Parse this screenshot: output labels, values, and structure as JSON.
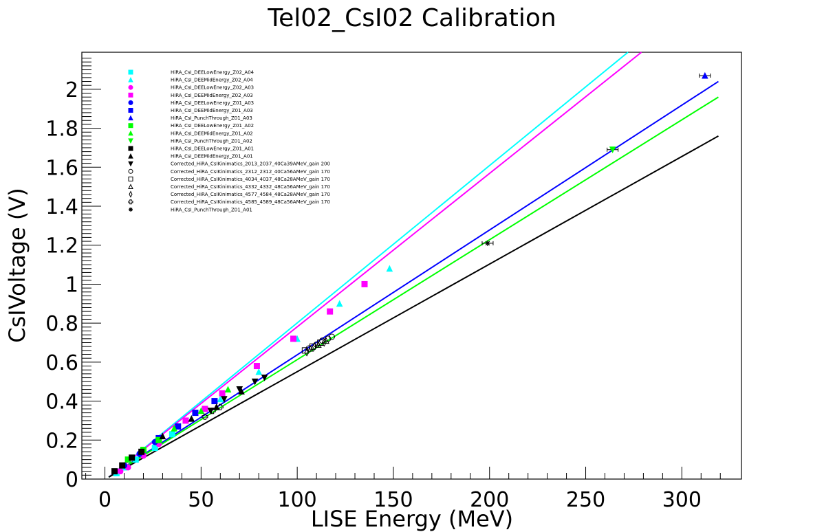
{
  "chart_data": {
    "type": "scatter",
    "title": "Tel02_CsI02 Calibration",
    "xlabel": "LISE Energy (MeV)",
    "ylabel": "CsIVoltage (V)",
    "xlim": [
      -12,
      331
    ],
    "ylim": [
      0,
      2.19
    ],
    "xticks": [
      0,
      50,
      100,
      150,
      200,
      250,
      300
    ],
    "yticks": [
      0,
      0.2,
      0.4,
      0.6,
      0.8,
      1,
      1.2,
      1.4,
      1.6,
      1.8,
      2
    ],
    "xtick_labels": [
      "0",
      "50",
      "100",
      "150",
      "200",
      "250",
      "300"
    ],
    "ytick_labels": [
      "0",
      "0.2",
      "0.4",
      "0.6",
      "0.8",
      "1",
      "1.2",
      "1.4",
      "1.6",
      "1.8",
      "2"
    ],
    "grid": false,
    "legend_position": "top-left",
    "series": [
      {
        "name": "HiRA_CsI_DEELowEnergy_Z02_A04",
        "color": "#00ffff",
        "marker": "square",
        "x": [
          6,
          10,
          16,
          26,
          35
        ],
        "y": [
          0.03,
          0.06,
          0.1,
          0.16,
          0.23
        ]
      },
      {
        "name": "HiRA_CsI_DEEMidEnergy_Z02_A04",
        "color": "#00ffff",
        "marker": "triangle-up",
        "x": [
          45,
          60,
          80,
          100,
          122,
          148
        ],
        "y": [
          0.31,
          0.41,
          0.55,
          0.72,
          0.9,
          1.08
        ]
      },
      {
        "name": "HiRA_CsI_DEELowEnergy_Z02_A03",
        "color": "#ff00ff",
        "marker": "circle",
        "x": [
          8,
          12,
          20,
          28
        ],
        "y": [
          0.04,
          0.06,
          0.12,
          0.18
        ]
      },
      {
        "name": "HiRA_CsI_DEEMidEnergy_Z02_A03",
        "color": "#ff00ff",
        "marker": "square",
        "x": [
          42,
          52,
          61,
          79,
          98,
          117,
          135
        ],
        "y": [
          0.3,
          0.36,
          0.44,
          0.58,
          0.72,
          0.86,
          1.0
        ]
      },
      {
        "name": "HiRA_CsI_DEELowEnergy_Z01_A03",
        "color": "#0000ff",
        "marker": "circle",
        "x": [
          10,
          18,
          26
        ],
        "y": [
          0.07,
          0.13,
          0.19
        ]
      },
      {
        "name": "HiRA_CsI_DEEMidEnergy_Z01_A03",
        "color": "#0000ff",
        "marker": "square",
        "x": [
          28,
          38,
          47,
          57
        ],
        "y": [
          0.21,
          0.27,
          0.34,
          0.4
        ]
      },
      {
        "name": "HiRA_CsI_PunchThrough_Z01_A03",
        "color": "#0000ff",
        "marker": "triangle-up",
        "x": [
          312
        ],
        "y": [
          2.07
        ]
      },
      {
        "name": "HiRA_CsI_DEELowEnergy_Z01_A02",
        "color": "#00ff00",
        "marker": "square",
        "x": [
          12,
          20,
          28
        ],
        "y": [
          0.1,
          0.15,
          0.2
        ]
      },
      {
        "name": "HiRA_CsI_DEEMidEnergy_Z01_A02",
        "color": "#00ff00",
        "marker": "triangle-up",
        "x": [
          36,
          50,
          64
        ],
        "y": [
          0.26,
          0.35,
          0.46
        ]
      },
      {
        "name": "HiRA_CsI_PunchThrough_Z01_A02",
        "color": "#00ff00",
        "marker": "triangle-down",
        "x": [
          264
        ],
        "y": [
          1.69
        ]
      },
      {
        "name": "HiRA_CsI_DEELowEnergy_Z01_A01",
        "color": "#000000",
        "marker": "square",
        "x": [
          5,
          9,
          14,
          19
        ],
        "y": [
          0.04,
          0.07,
          0.11,
          0.14
        ]
      },
      {
        "name": "HiRA_CsI_DEEMidEnergy_Z01_A01",
        "color": "#000000",
        "marker": "triangle-up",
        "x": [
          30,
          45,
          58,
          71
        ],
        "y": [
          0.22,
          0.31,
          0.37,
          0.45
        ]
      },
      {
        "name": "Corrected_HiRA_CsIKinimatics_2013_2037_40Ca39AMeV_gain 200",
        "color": "#000000",
        "marker": "triangle-down",
        "x": [
          55,
          62,
          70,
          78,
          83
        ],
        "y": [
          0.35,
          0.41,
          0.46,
          0.5,
          0.52
        ]
      },
      {
        "name": "Corrected_HiRA_CsIKinimatics_2312_2312_40Ca56AMeV_gain 170",
        "color": "#000000",
        "marker": "circle-open",
        "x": [
          106,
          110,
          113,
          116,
          118
        ],
        "y": [
          0.67,
          0.69,
          0.71,
          0.72,
          0.73
        ]
      },
      {
        "name": "Corrected_HiRA_CsIKinimatics_4034_4037_48Ca28AMeV_gain 170",
        "color": "#000000",
        "marker": "square-open",
        "x": [
          104,
          108,
          112
        ],
        "y": [
          0.66,
          0.68,
          0.7
        ]
      },
      {
        "name": "Corrected_HiRA_CsIKinimatics_4332_4332_48Ca56AMeV_gain 170",
        "color": "#000000",
        "marker": "triangle-open",
        "x": [
          107,
          111,
          115
        ],
        "y": [
          0.67,
          0.69,
          0.71
        ]
      },
      {
        "name": "Corrected_HiRA_CsIKinimatics_4577_4584_48Ca28AMeV_gain 170",
        "color": "#000000",
        "marker": "diamond-open",
        "x": [
          105,
          109,
          114
        ],
        "y": [
          0.65,
          0.68,
          0.7
        ]
      },
      {
        "name": "Corrected_HiRA_CsIKinimatics_4585_4589_48Ca56AMeV_gain 170",
        "color": "#000000",
        "marker": "cross-open",
        "x": [
          52,
          56,
          60
        ],
        "y": [
          0.32,
          0.35,
          0.37
        ]
      },
      {
        "name": "HiRA_CsI_PunchThrough_Z01_A01",
        "color": "#000000",
        "marker": "star",
        "x": [
          199
        ],
        "y": [
          1.21
        ]
      }
    ],
    "fits": [
      {
        "color": "#00ffff",
        "x": [
          2,
          272
        ],
        "y": [
          0.01,
          2.19
        ]
      },
      {
        "color": "#ff00ff",
        "x": [
          2,
          279
        ],
        "y": [
          0.01,
          2.19
        ]
      },
      {
        "color": "#0000ff",
        "x": [
          2,
          319
        ],
        "y": [
          0.01,
          2.04
        ]
      },
      {
        "color": "#00ff00",
        "x": [
          2,
          319
        ],
        "y": [
          0.01,
          1.96
        ]
      },
      {
        "color": "#000000",
        "x": [
          2,
          319
        ],
        "y": [
          0.01,
          1.76
        ]
      }
    ]
  }
}
